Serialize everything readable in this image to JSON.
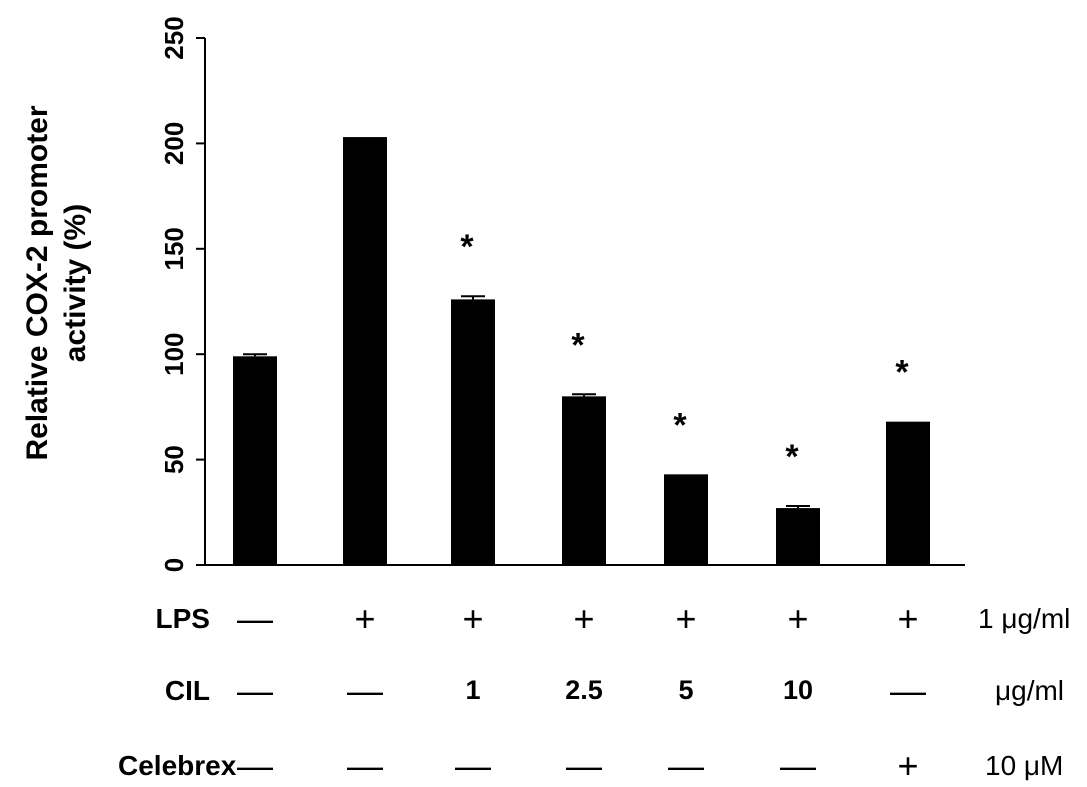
{
  "chart_data": {
    "type": "bar",
    "ylabel_line1": "Relative COX-2 promoter",
    "ylabel_line2": "activity (%)",
    "ylim": [
      0,
      250
    ],
    "yticks": [
      0,
      50,
      100,
      150,
      200,
      250
    ],
    "values": [
      99,
      203,
      126,
      80,
      43,
      27,
      68
    ],
    "errors": [
      1,
      0,
      1.5,
      1,
      0,
      1,
      0
    ],
    "significance": [
      "",
      "",
      "*",
      "*",
      "*",
      "*",
      "*"
    ],
    "bar_color": "#000000",
    "grid": false,
    "legend": "none"
  },
  "conditions": {
    "rows": [
      {
        "label": "LPS",
        "cells": [
          "—",
          "+",
          "+",
          "+",
          "+",
          "+",
          "+"
        ],
        "unit": "1 μg/ml"
      },
      {
        "label": "CIL",
        "cells": [
          "—",
          "—",
          "1",
          "2.5",
          "5",
          "10",
          "—"
        ],
        "unit": "μg/ml"
      },
      {
        "label": "Celebrex",
        "cells": [
          "—",
          "—",
          "—",
          "—",
          "—",
          "—",
          "+"
        ],
        "unit": "10 μM"
      }
    ]
  }
}
